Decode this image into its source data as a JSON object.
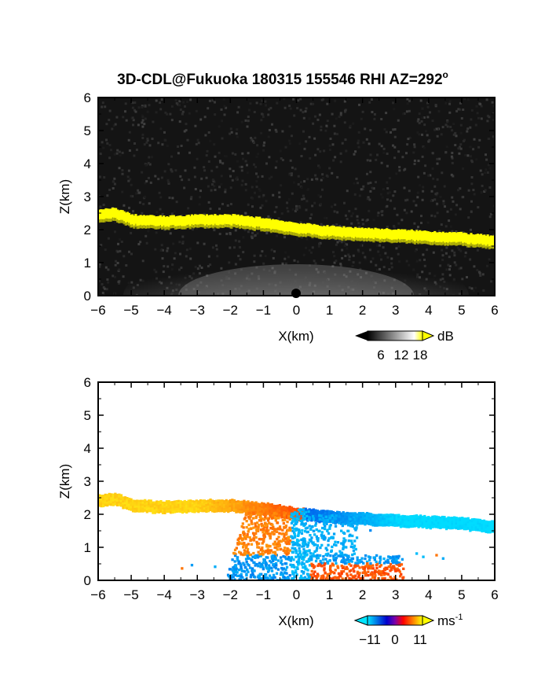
{
  "title": "3D-CDL@Fukuoka 180315 155546 RHI AZ=292",
  "title_superscript": "o",
  "chart_data": [
    {
      "type": "heatmap",
      "name": "reflectivity",
      "xlabel": "X(km)",
      "ylabel": "Z(km)",
      "xlim": [
        -6,
        6
      ],
      "ylim": [
        0,
        6
      ],
      "x_ticks": [
        -6,
        -5,
        -4,
        -3,
        -2,
        -1,
        0,
        1,
        2,
        3,
        4,
        5,
        6
      ],
      "y_ticks": [
        0,
        1,
        2,
        3,
        4,
        5,
        6
      ],
      "colorbar": {
        "unit": "dB",
        "ticks": [
          6,
          12,
          18
        ],
        "colors": [
          "#000000",
          "#ffffff",
          "#ffff00"
        ]
      },
      "layer_top_km": [
        [
          -6,
          2.6
        ],
        [
          -5.5,
          2.65
        ],
        [
          -5,
          2.45
        ],
        [
          -4,
          2.4
        ],
        [
          -3,
          2.45
        ],
        [
          -2,
          2.45
        ],
        [
          -1,
          2.35
        ],
        [
          0,
          2.2
        ],
        [
          1,
          2.1
        ],
        [
          2,
          2.05
        ],
        [
          3,
          2.0
        ],
        [
          4,
          1.95
        ],
        [
          5,
          1.9
        ],
        [
          6,
          1.8
        ]
      ],
      "layer_thickness_km": 0.3
    },
    {
      "type": "heatmap",
      "name": "radial-velocity",
      "xlabel": "X(km)",
      "ylabel": "Z(km)",
      "xlim": [
        -6,
        6
      ],
      "ylim": [
        0,
        6
      ],
      "x_ticks": [
        -6,
        -5,
        -4,
        -3,
        -2,
        -1,
        0,
        1,
        2,
        3,
        4,
        5,
        6
      ],
      "y_ticks": [
        0,
        1,
        2,
        3,
        4,
        5,
        6
      ],
      "colorbar": {
        "unit": "ms",
        "unit_exponent": "-1",
        "ticks": [
          "−11",
          "0",
          "11"
        ],
        "colors": [
          "#00e5ff",
          "#0000cc",
          "#ff0000",
          "#ffff00"
        ]
      }
    }
  ]
}
